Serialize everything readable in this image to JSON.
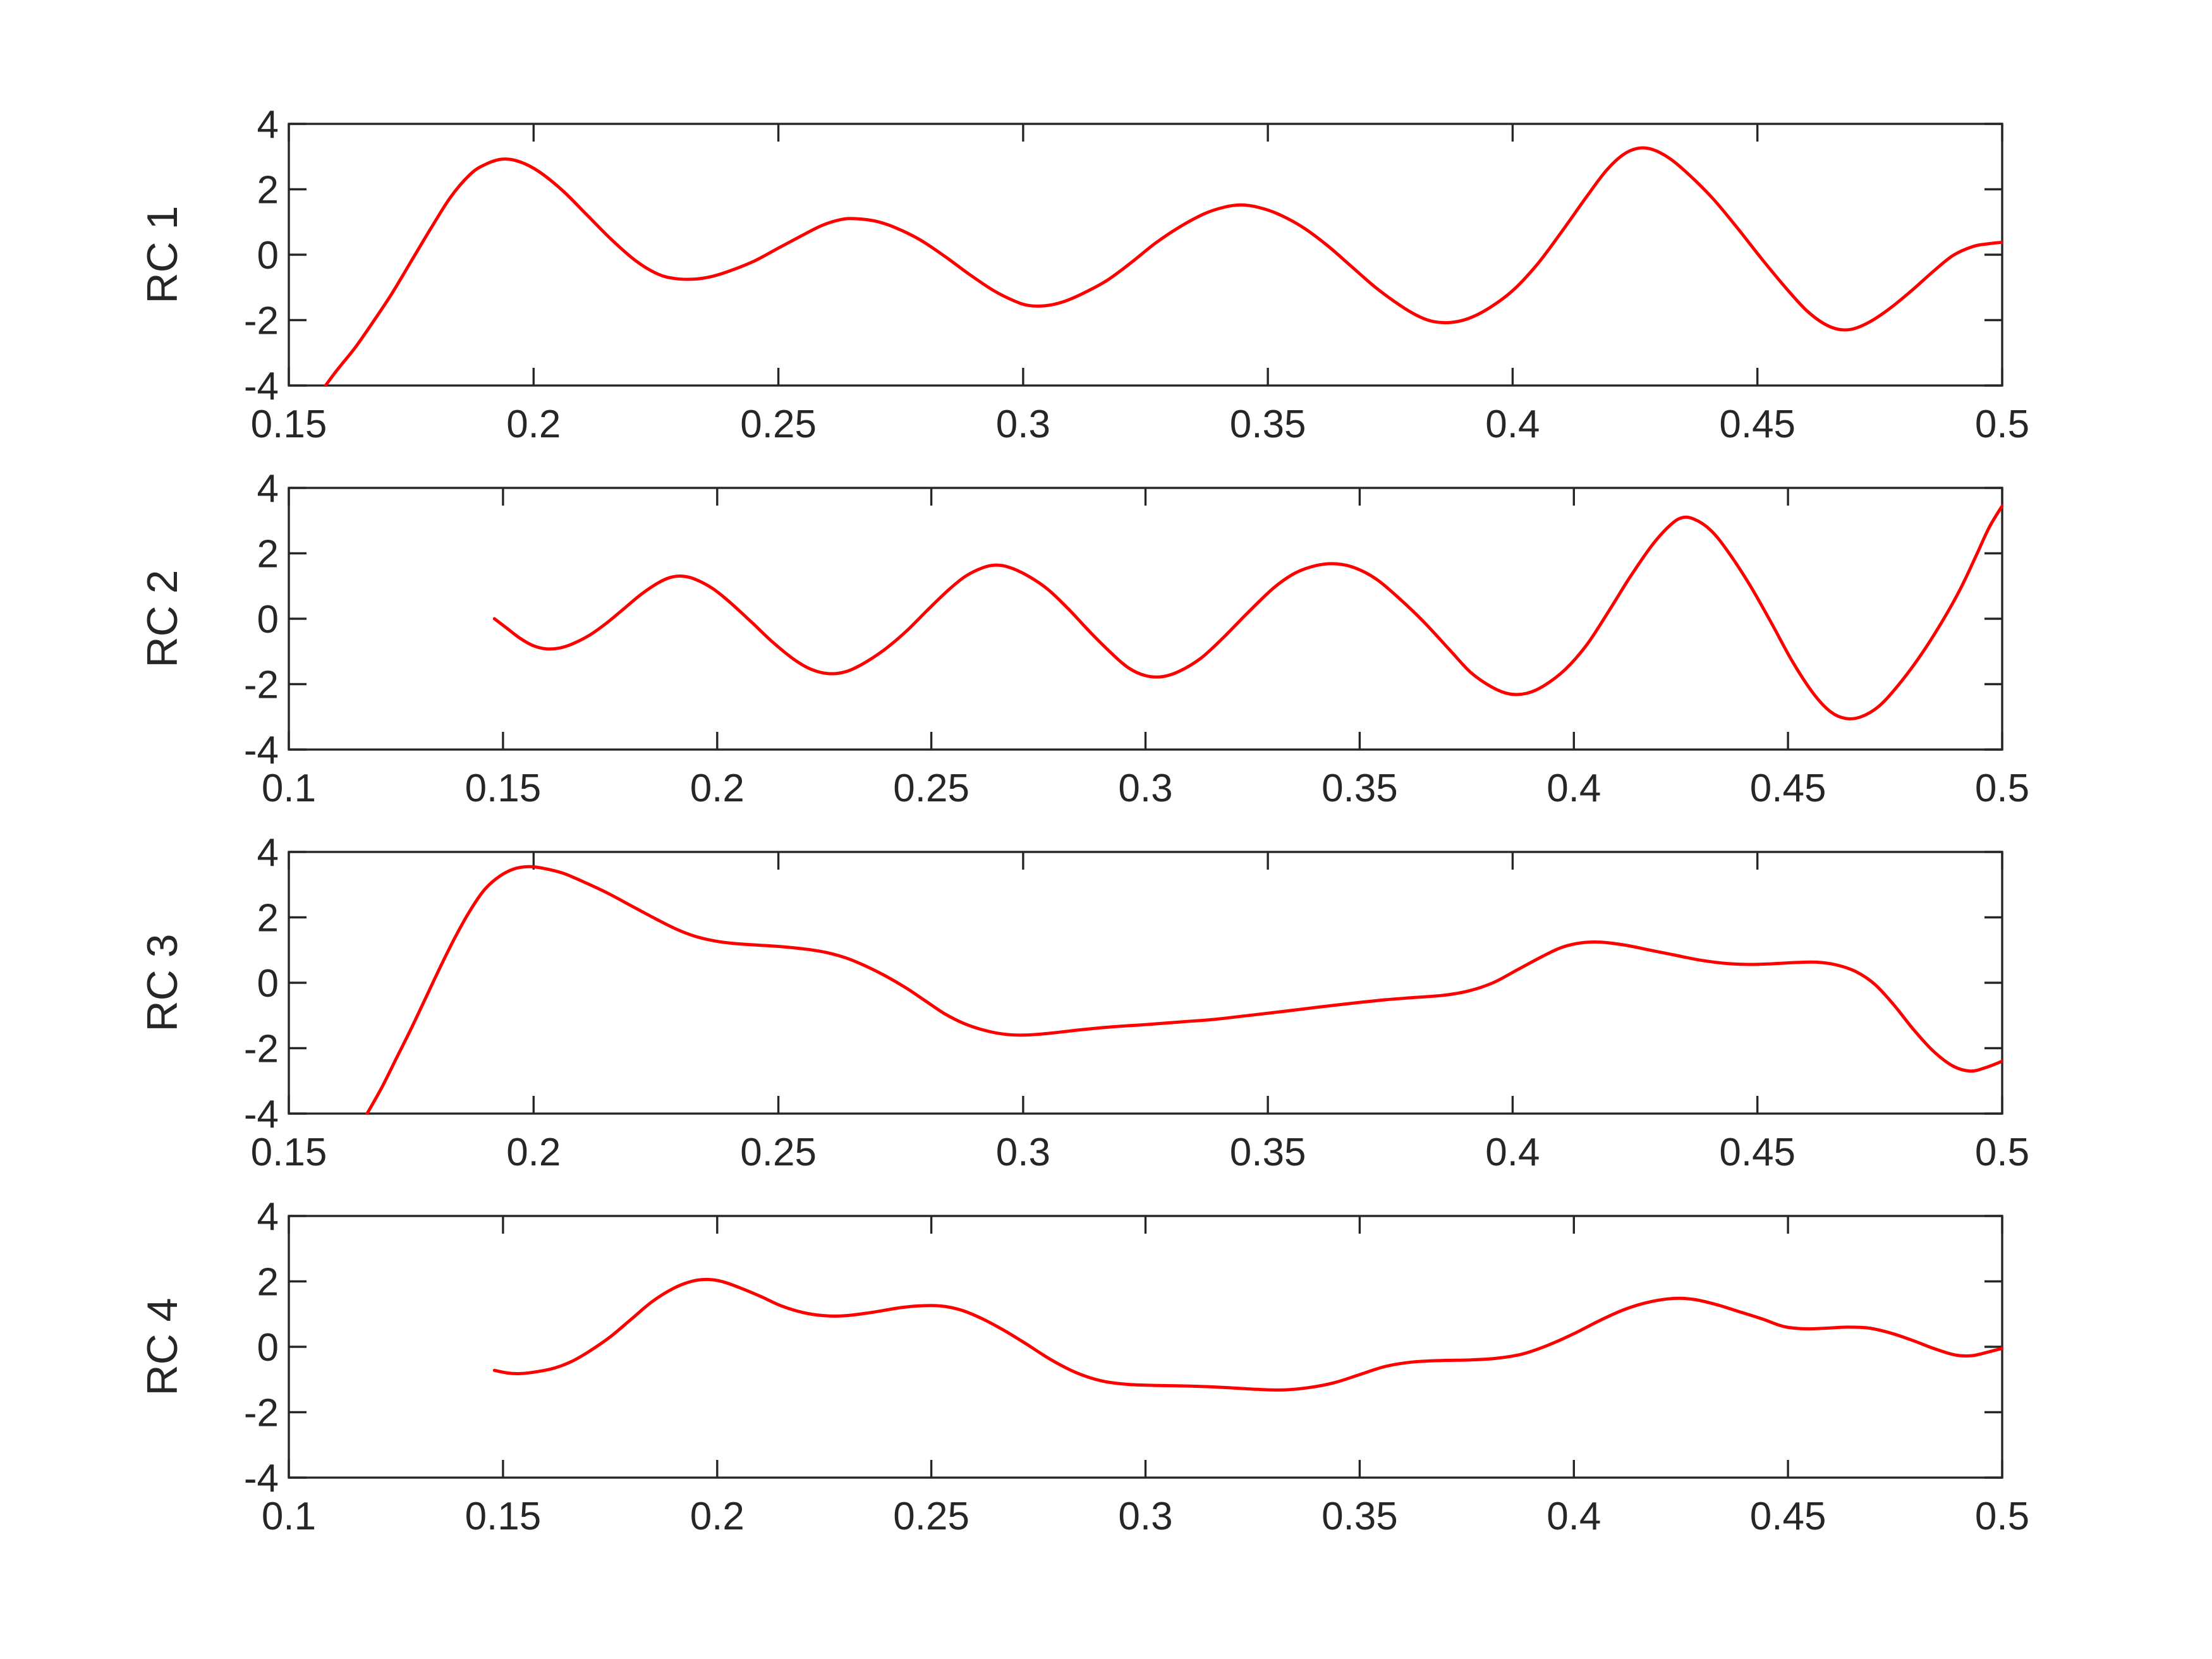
{
  "figure": {
    "background": "#ffffff",
    "axis_color": "#262626",
    "tick_label_color": "#262626",
    "curve_color": "#ff0000"
  },
  "chart_data": [
    {
      "type": "line",
      "title": "",
      "xlabel": "",
      "ylabel": "RC 1",
      "xlim": [
        0.15,
        0.5
      ],
      "ylim": [
        -4,
        4
      ],
      "grid": false,
      "legend_position": "none",
      "xticks": [
        0.15,
        0.2,
        0.25,
        0.3,
        0.35,
        0.4,
        0.45,
        0.5
      ],
      "xtick_labels": [
        "0.15",
        "0.2",
        "0.25",
        "0.3",
        "0.35",
        "0.4",
        "0.45",
        "0.5"
      ],
      "yticks": [
        -4,
        -2,
        0,
        2,
        4
      ],
      "ytick_labels": [
        "-4",
        "-2",
        "0",
        "2",
        "4"
      ],
      "series": [
        {
          "name": "RC 1",
          "color": "#ff0000",
          "x": [
            0.1575,
            0.16,
            0.1635,
            0.167,
            0.171,
            0.175,
            0.179,
            0.183,
            0.187,
            0.19,
            0.1935,
            0.197,
            0.201,
            0.206,
            0.211,
            0.216,
            0.221,
            0.2255,
            0.229,
            0.2325,
            0.236,
            0.24,
            0.245,
            0.25,
            0.255,
            0.259,
            0.263,
            0.266,
            0.27,
            0.274,
            0.279,
            0.284,
            0.289,
            0.294,
            0.298,
            0.301,
            0.3045,
            0.308,
            0.312,
            0.317,
            0.322,
            0.327,
            0.332,
            0.337,
            0.341,
            0.3445,
            0.348,
            0.352,
            0.357,
            0.362,
            0.367,
            0.372,
            0.377,
            0.381,
            0.384,
            0.3875,
            0.391,
            0.395,
            0.4,
            0.405,
            0.41,
            0.415,
            0.419,
            0.4225,
            0.4255,
            0.4285,
            0.432,
            0.436,
            0.441,
            0.446,
            0.451,
            0.456,
            0.46,
            0.4635,
            0.4665,
            0.4695,
            0.473,
            0.477,
            0.4815,
            0.486,
            0.49,
            0.494,
            0.497,
            0.5
          ],
          "y": [
            -4,
            -3.5,
            -2.85,
            -2.1,
            -1.2,
            -0.2,
            0.8,
            1.75,
            2.45,
            2.75,
            2.92,
            2.85,
            2.55,
            1.95,
            1.2,
            0.45,
            -0.2,
            -0.6,
            -0.73,
            -0.75,
            -0.68,
            -0.5,
            -0.2,
            0.2,
            0.6,
            0.9,
            1.08,
            1.1,
            1.02,
            0.82,
            0.45,
            -0.05,
            -0.6,
            -1.1,
            -1.4,
            -1.55,
            -1.56,
            -1.45,
            -1.2,
            -0.8,
            -0.25,
            0.35,
            0.85,
            1.25,
            1.45,
            1.52,
            1.45,
            1.25,
            0.85,
            0.3,
            -0.35,
            -1.0,
            -1.55,
            -1.9,
            -2.05,
            -2.07,
            -1.95,
            -1.65,
            -1.1,
            -0.3,
            0.7,
            1.75,
            2.55,
            3.05,
            3.25,
            3.22,
            2.95,
            2.45,
            1.7,
            0.8,
            -0.15,
            -1.05,
            -1.7,
            -2.1,
            -2.28,
            -2.27,
            -2.05,
            -1.65,
            -1.1,
            -0.5,
            -0.02,
            0.25,
            0.33,
            0.38
          ]
        }
      ]
    },
    {
      "type": "line",
      "title": "",
      "xlabel": "",
      "ylabel": "RC 2",
      "xlim": [
        0.1,
        0.5
      ],
      "ylim": [
        -4,
        4
      ],
      "grid": false,
      "legend_position": "none",
      "xticks": [
        0.1,
        0.15,
        0.2,
        0.25,
        0.3,
        0.35,
        0.4,
        0.45,
        0.5
      ],
      "xtick_labels": [
        "0.1",
        "0.15",
        "0.2",
        "0.25",
        "0.3",
        "0.35",
        "0.4",
        "0.45",
        "0.5"
      ],
      "yticks": [
        -4,
        -2,
        0,
        2,
        4
      ],
      "ytick_labels": [
        "-4",
        "-2",
        "0",
        "2",
        "4"
      ],
      "series": [
        {
          "name": "RC 2",
          "color": "#ff0000",
          "x": [
            0.148,
            0.151,
            0.154,
            0.157,
            0.16,
            0.163,
            0.166,
            0.17,
            0.174,
            0.178,
            0.182,
            0.186,
            0.189,
            0.192,
            0.195,
            0.199,
            0.203,
            0.208,
            0.213,
            0.218,
            0.222,
            0.226,
            0.23,
            0.234,
            0.239,
            0.244,
            0.249,
            0.254,
            0.258,
            0.262,
            0.265,
            0.268,
            0.272,
            0.277,
            0.282,
            0.287,
            0.292,
            0.296,
            0.3,
            0.304,
            0.308,
            0.313,
            0.318,
            0.324,
            0.33,
            0.335,
            0.34,
            0.3445,
            0.349,
            0.354,
            0.359,
            0.365,
            0.371,
            0.376,
            0.381,
            0.385,
            0.389,
            0.393,
            0.398,
            0.403,
            0.408,
            0.413,
            0.418,
            0.422,
            0.425,
            0.428,
            0.432,
            0.436,
            0.441,
            0.446,
            0.451,
            0.456,
            0.46,
            0.4635,
            0.467,
            0.471,
            0.475,
            0.48,
            0.485,
            0.49,
            0.494,
            0.497,
            0.5
          ],
          "y": [
            0.0,
            -0.3,
            -0.6,
            -0.82,
            -0.92,
            -0.9,
            -0.78,
            -0.52,
            -0.15,
            0.28,
            0.72,
            1.08,
            1.26,
            1.3,
            1.2,
            0.92,
            0.5,
            -0.1,
            -0.72,
            -1.25,
            -1.55,
            -1.68,
            -1.62,
            -1.38,
            -0.95,
            -0.4,
            0.25,
            0.88,
            1.3,
            1.56,
            1.64,
            1.58,
            1.35,
            0.92,
            0.3,
            -0.4,
            -1.05,
            -1.5,
            -1.74,
            -1.77,
            -1.6,
            -1.2,
            -0.6,
            0.2,
            0.95,
            1.4,
            1.63,
            1.68,
            1.55,
            1.2,
            0.65,
            -0.1,
            -0.95,
            -1.65,
            -2.1,
            -2.3,
            -2.28,
            -2.05,
            -1.55,
            -0.8,
            0.2,
            1.25,
            2.2,
            2.8,
            3.08,
            3.05,
            2.7,
            2.05,
            1.05,
            -0.1,
            -1.3,
            -2.3,
            -2.85,
            -3.05,
            -3.0,
            -2.7,
            -2.15,
            -1.3,
            -0.3,
            0.85,
            1.95,
            2.8,
            3.45
          ]
        }
      ]
    },
    {
      "type": "line",
      "title": "",
      "xlabel": "",
      "ylabel": "RC 3",
      "xlim": [
        0.15,
        0.5
      ],
      "ylim": [
        -4,
        4
      ],
      "grid": false,
      "legend_position": "none",
      "xticks": [
        0.15,
        0.2,
        0.25,
        0.3,
        0.35,
        0.4,
        0.45,
        0.5
      ],
      "xtick_labels": [
        "0.15",
        "0.2",
        "0.25",
        "0.3",
        "0.35",
        "0.4",
        "0.45",
        "0.5"
      ],
      "yticks": [
        -4,
        -2,
        0,
        2,
        4
      ],
      "ytick_labels": [
        "-4",
        "-2",
        "0",
        "2",
        "4"
      ],
      "series": [
        {
          "name": "RC 3",
          "color": "#ff0000",
          "x": [
            0.166,
            0.169,
            0.172,
            0.175,
            0.178,
            0.181,
            0.184,
            0.187,
            0.19,
            0.193,
            0.196,
            0.199,
            0.202,
            0.206,
            0.21,
            0.215,
            0.22,
            0.225,
            0.229,
            0.233,
            0.237,
            0.241,
            0.246,
            0.251,
            0.256,
            0.26,
            0.264,
            0.268,
            0.272,
            0.276,
            0.28,
            0.284,
            0.288,
            0.292,
            0.296,
            0.3,
            0.305,
            0.311,
            0.318,
            0.325,
            0.332,
            0.339,
            0.346,
            0.353,
            0.36,
            0.367,
            0.374,
            0.38,
            0.386,
            0.391,
            0.396,
            0.401,
            0.406,
            0.41,
            0.414,
            0.418,
            0.423,
            0.428,
            0.433,
            0.438,
            0.443,
            0.448,
            0.453,
            0.458,
            0.462,
            0.466,
            0.47,
            0.474,
            0.478,
            0.482,
            0.486,
            0.49,
            0.4935,
            0.4965,
            0.5
          ],
          "y": [
            -4,
            -3.2,
            -2.3,
            -1.4,
            -0.45,
            0.5,
            1.4,
            2.2,
            2.85,
            3.25,
            3.48,
            3.55,
            3.5,
            3.35,
            3.1,
            2.75,
            2.35,
            1.95,
            1.65,
            1.42,
            1.28,
            1.2,
            1.15,
            1.1,
            1.02,
            0.92,
            0.75,
            0.5,
            0.2,
            -0.15,
            -0.55,
            -0.95,
            -1.25,
            -1.45,
            -1.57,
            -1.6,
            -1.55,
            -1.45,
            -1.35,
            -1.28,
            -1.2,
            -1.12,
            -1.0,
            -0.88,
            -0.75,
            -0.63,
            -0.52,
            -0.45,
            -0.38,
            -0.25,
            0.0,
            0.4,
            0.8,
            1.08,
            1.22,
            1.24,
            1.15,
            1.0,
            0.85,
            0.7,
            0.6,
            0.56,
            0.58,
            0.62,
            0.63,
            0.55,
            0.35,
            -0.05,
            -0.7,
            -1.45,
            -2.1,
            -2.55,
            -2.7,
            -2.6,
            -2.4
          ]
        }
      ]
    },
    {
      "type": "line",
      "title": "",
      "xlabel": "",
      "ylabel": "RC 4",
      "xlim": [
        0.1,
        0.5
      ],
      "ylim": [
        -4,
        4
      ],
      "grid": false,
      "legend_position": "none",
      "xticks": [
        0.1,
        0.15,
        0.2,
        0.25,
        0.3,
        0.35,
        0.4,
        0.45,
        0.5
      ],
      "xtick_labels": [
        "0.1",
        "0.15",
        "0.2",
        "0.25",
        "0.3",
        "0.35",
        "0.4",
        "0.45",
        "0.5"
      ],
      "yticks": [
        -4,
        -2,
        0,
        2,
        4
      ],
      "ytick_labels": [
        "-4",
        "-2",
        "0",
        "2",
        "4"
      ],
      "series": [
        {
          "name": "RC 4",
          "color": "#ff0000",
          "x": [
            0.148,
            0.151,
            0.154,
            0.158,
            0.162,
            0.166,
            0.17,
            0.175,
            0.18,
            0.185,
            0.19,
            0.194,
            0.1975,
            0.201,
            0.205,
            0.21,
            0.215,
            0.22,
            0.225,
            0.23,
            0.236,
            0.242,
            0.247,
            0.252,
            0.257,
            0.262,
            0.267,
            0.272,
            0.278,
            0.284,
            0.29,
            0.296,
            0.302,
            0.31,
            0.318,
            0.326,
            0.332,
            0.338,
            0.344,
            0.35,
            0.356,
            0.362,
            0.369,
            0.376,
            0.382,
            0.388,
            0.394,
            0.4,
            0.406,
            0.412,
            0.418,
            0.4235,
            0.428,
            0.433,
            0.438,
            0.444,
            0.449,
            0.454,
            0.459,
            0.464,
            0.469,
            0.474,
            0.479,
            0.484,
            0.489,
            0.493,
            0.497,
            0.5
          ],
          "y": [
            -0.72,
            -0.8,
            -0.82,
            -0.76,
            -0.65,
            -0.45,
            -0.15,
            0.3,
            0.85,
            1.4,
            1.8,
            2.0,
            2.06,
            2.0,
            1.82,
            1.55,
            1.25,
            1.05,
            0.95,
            0.95,
            1.05,
            1.18,
            1.25,
            1.25,
            1.12,
            0.85,
            0.5,
            0.1,
            -0.4,
            -0.8,
            -1.05,
            -1.15,
            -1.18,
            -1.2,
            -1.24,
            -1.3,
            -1.32,
            -1.25,
            -1.1,
            -0.85,
            -0.6,
            -0.47,
            -0.42,
            -0.4,
            -0.35,
            -0.22,
            0.05,
            0.4,
            0.8,
            1.15,
            1.38,
            1.48,
            1.45,
            1.3,
            1.1,
            0.85,
            0.62,
            0.55,
            0.57,
            0.6,
            0.57,
            0.42,
            0.2,
            -0.05,
            -0.25,
            -0.27,
            -0.15,
            -0.05
          ]
        }
      ]
    }
  ]
}
